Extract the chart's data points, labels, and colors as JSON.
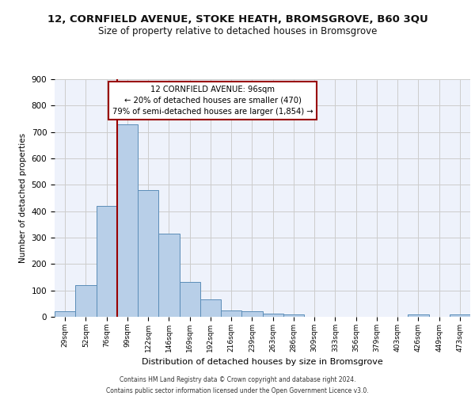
{
  "title1": "12, CORNFIELD AVENUE, STOKE HEATH, BROMSGROVE, B60 3QU",
  "title2": "Size of property relative to detached houses in Bromsgrove",
  "xlabel": "Distribution of detached houses by size in Bromsgrove",
  "ylabel": "Number of detached properties",
  "bar_values": [
    20,
    120,
    420,
    730,
    480,
    315,
    133,
    65,
    25,
    22,
    12,
    8,
    0,
    0,
    0,
    0,
    0,
    10,
    0,
    10
  ],
  "bar_labels": [
    "29sqm",
    "52sqm",
    "76sqm",
    "99sqm",
    "122sqm",
    "146sqm",
    "169sqm",
    "192sqm",
    "216sqm",
    "239sqm",
    "263sqm",
    "286sqm",
    "309sqm",
    "333sqm",
    "356sqm",
    "379sqm",
    "403sqm",
    "426sqm",
    "449sqm",
    "473sqm"
  ],
  "bar_color": "#b8cfe8",
  "bar_edge_color": "#5b8db8",
  "grid_color": "#cccccc",
  "vline_x_index": 3,
  "vline_color": "#990000",
  "annotation_text": "12 CORNFIELD AVENUE: 96sqm\n← 20% of detached houses are smaller (470)\n79% of semi-detached houses are larger (1,854) →",
  "annotation_box_facecolor": "#ffffff",
  "annotation_border_color": "#990000",
  "ylim": [
    0,
    900
  ],
  "yticks": [
    0,
    100,
    200,
    300,
    400,
    500,
    600,
    700,
    800,
    900
  ],
  "footer1": "Contains HM Land Registry data © Crown copyright and database right 2024.",
  "footer2": "Contains public sector information licensed under the Open Government Licence v3.0.",
  "bg_color": "#eef2fb"
}
